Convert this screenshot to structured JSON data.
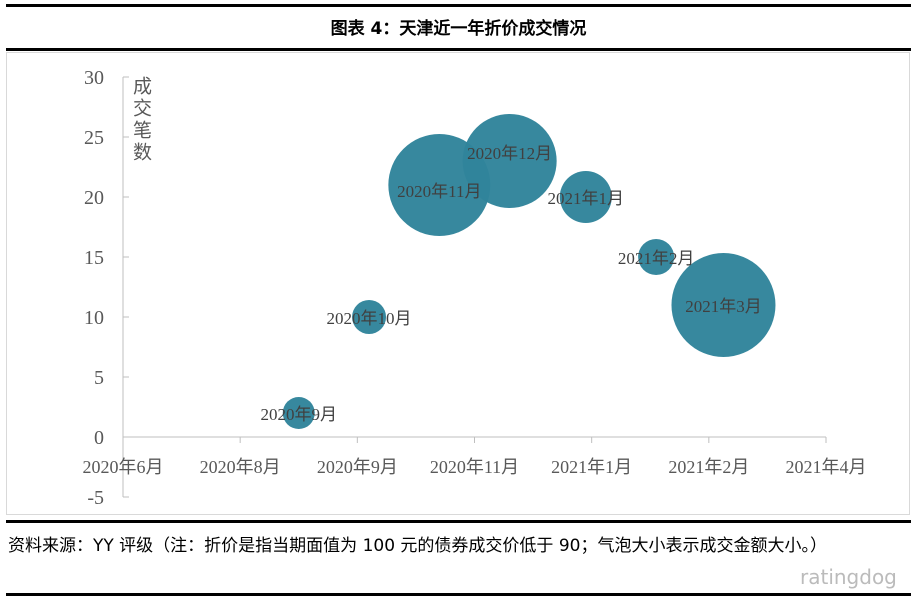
{
  "title": "图表 4：天津近一年折价成交情况",
  "source": "资料来源：YY 评级（注：折价是指当期面值为 100 元的债券成交价低于 90；气泡大小表示成交金额大小。）",
  "watermark": "ratingdog",
  "chart_data": {
    "type": "bubble",
    "title": "图表 4：天津近一年折价成交情况",
    "ylabel": "成交笔数",
    "xlabel": "",
    "ylim": [
      -5,
      30
    ],
    "yticks": [
      -5,
      0,
      5,
      10,
      15,
      20,
      25,
      30
    ],
    "x_units": "months since 2020-06",
    "xlim": [
      0,
      12
    ],
    "xticks": [
      {
        "x": 0,
        "label": "2020年6月"
      },
      {
        "x": 2,
        "label": "2020年8月"
      },
      {
        "x": 4,
        "label": "2020年9月"
      },
      {
        "x": 6,
        "label": "2020年11月"
      },
      {
        "x": 8,
        "label": "2021年1月"
      },
      {
        "x": 10,
        "label": "2021年2月"
      },
      {
        "x": 12,
        "label": "2021年4月"
      }
    ],
    "grid": false,
    "color": "#31849B",
    "points": [
      {
        "label": "2020年9月",
        "x": 3.0,
        "y": 2,
        "size": 16
      },
      {
        "label": "2020年10月",
        "x": 4.2,
        "y": 10,
        "size": 17
      },
      {
        "label": "2020年11月",
        "x": 5.4,
        "y": 21,
        "size": 51
      },
      {
        "label": "2020年12月",
        "x": 6.6,
        "y": 23,
        "size": 47
      },
      {
        "label": "2021年1月",
        "x": 7.9,
        "y": 20,
        "size": 26
      },
      {
        "label": "2021年2月",
        "x": 9.1,
        "y": 15,
        "size": 18
      },
      {
        "label": "2021年3月",
        "x": 10.25,
        "y": 11,
        "size": 52
      }
    ]
  }
}
